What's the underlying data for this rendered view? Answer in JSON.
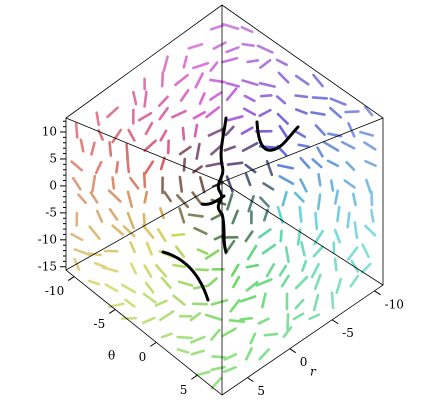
{
  "chart_data": {
    "type": "vector-field-3d",
    "xlabel": "θ",
    "xlim": [
      -11,
      8
    ],
    "xticks": [
      -10,
      -5,
      0,
      5
    ],
    "ylabel": "r",
    "ylim": [
      -11,
      8
    ],
    "yticks": [
      -10,
      -5,
      0,
      5
    ],
    "zlim": [
      -15.6,
      12.6
    ],
    "zticks": [
      10,
      5,
      0,
      -5,
      -10,
      -15
    ]
  }
}
